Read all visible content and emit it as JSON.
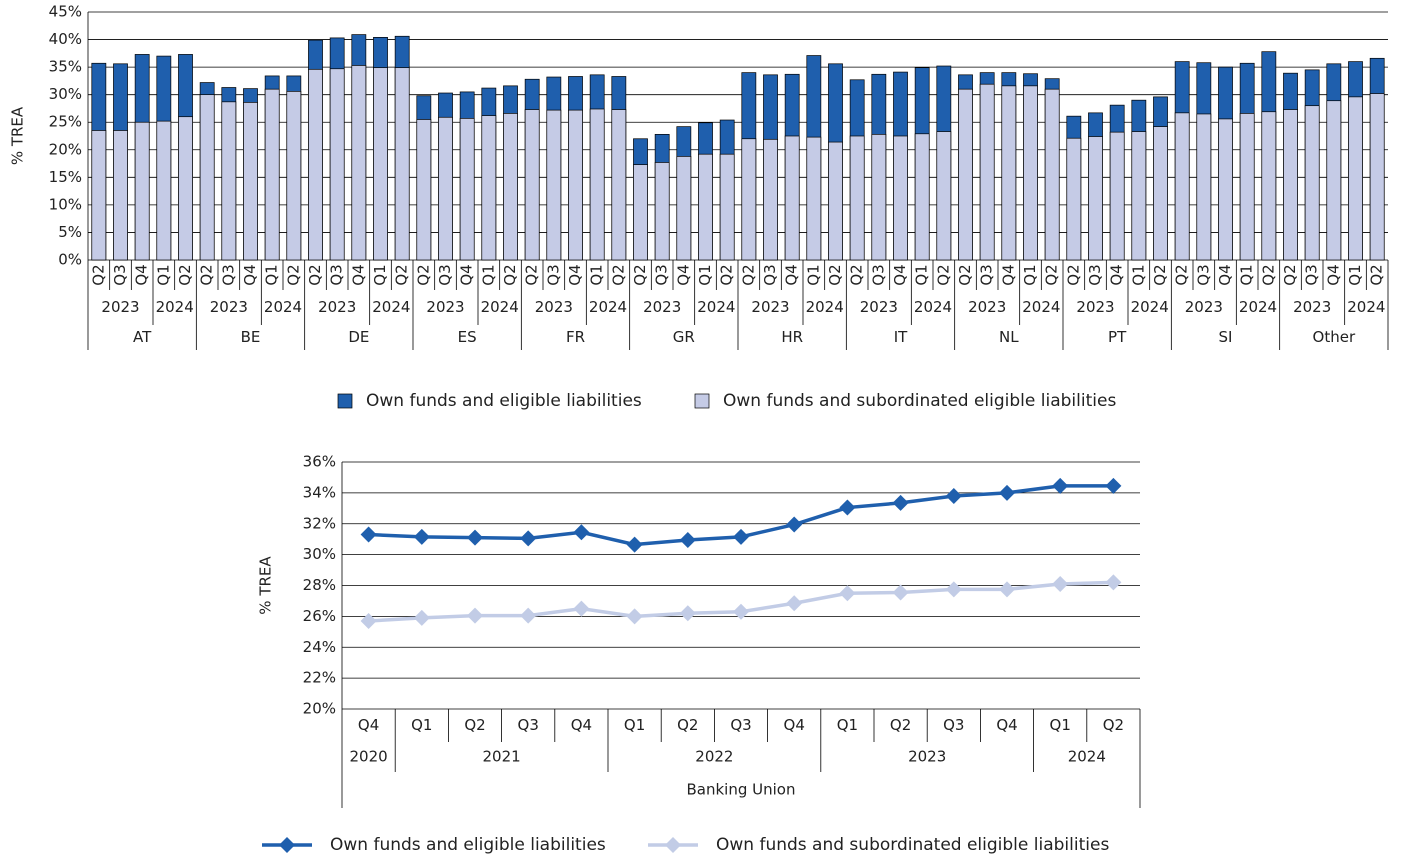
{
  "chart_data": [
    {
      "type": "bar",
      "overlap": true,
      "ylabel": "% TREA",
      "categories": [
        [
          "Q2",
          "2023",
          "AT"
        ],
        [
          "Q3",
          "2023",
          "AT"
        ],
        [
          "Q4",
          "2023",
          "AT"
        ],
        [
          "Q1",
          "2024",
          "AT"
        ],
        [
          "Q2",
          "2024",
          "AT"
        ],
        [
          "Q2",
          "2023",
          "BE"
        ],
        [
          "Q3",
          "2023",
          "BE"
        ],
        [
          "Q4",
          "2023",
          "BE"
        ],
        [
          "Q1",
          "2024",
          "BE"
        ],
        [
          "Q2",
          "2024",
          "BE"
        ],
        [
          "Q2",
          "2023",
          "DE"
        ],
        [
          "Q3",
          "2023",
          "DE"
        ],
        [
          "Q4",
          "2023",
          "DE"
        ],
        [
          "Q1",
          "2024",
          "DE"
        ],
        [
          "Q2",
          "2024",
          "DE"
        ],
        [
          "Q2",
          "2023",
          "ES"
        ],
        [
          "Q3",
          "2023",
          "ES"
        ],
        [
          "Q4",
          "2023",
          "ES"
        ],
        [
          "Q1",
          "2024",
          "ES"
        ],
        [
          "Q2",
          "2024",
          "ES"
        ],
        [
          "Q2",
          "2023",
          "FR"
        ],
        [
          "Q3",
          "2023",
          "FR"
        ],
        [
          "Q4",
          "2023",
          "FR"
        ],
        [
          "Q1",
          "2024",
          "FR"
        ],
        [
          "Q2",
          "2024",
          "FR"
        ],
        [
          "Q2",
          "2023",
          "GR"
        ],
        [
          "Q3",
          "2023",
          "GR"
        ],
        [
          "Q4",
          "2023",
          "GR"
        ],
        [
          "Q1",
          "2024",
          "GR"
        ],
        [
          "Q2",
          "2024",
          "GR"
        ],
        [
          "Q2",
          "2023",
          "HR"
        ],
        [
          "Q3",
          "2023",
          "HR"
        ],
        [
          "Q4",
          "2023",
          "HR"
        ],
        [
          "Q1",
          "2024",
          "HR"
        ],
        [
          "Q2",
          "2024",
          "HR"
        ],
        [
          "Q2",
          "2023",
          "IT"
        ],
        [
          "Q3",
          "2023",
          "IT"
        ],
        [
          "Q4",
          "2023",
          "IT"
        ],
        [
          "Q1",
          "2024",
          "IT"
        ],
        [
          "Q2",
          "2024",
          "IT"
        ],
        [
          "Q2",
          "2023",
          "NL"
        ],
        [
          "Q3",
          "2023",
          "NL"
        ],
        [
          "Q4",
          "2023",
          "NL"
        ],
        [
          "Q1",
          "2024",
          "NL"
        ],
        [
          "Q2",
          "2024",
          "NL"
        ],
        [
          "Q2",
          "2023",
          "PT"
        ],
        [
          "Q3",
          "2023",
          "PT"
        ],
        [
          "Q4",
          "2023",
          "PT"
        ],
        [
          "Q1",
          "2024",
          "PT"
        ],
        [
          "Q2",
          "2024",
          "PT"
        ],
        [
          "Q2",
          "2023",
          "SI"
        ],
        [
          "Q3",
          "2023",
          "SI"
        ],
        [
          "Q4",
          "2023",
          "SI"
        ],
        [
          "Q1",
          "2024",
          "SI"
        ],
        [
          "Q2",
          "2024",
          "SI"
        ],
        [
          "Q2",
          "2023",
          "Other"
        ],
        [
          "Q3",
          "2023",
          "Other"
        ],
        [
          "Q4",
          "2023",
          "Other"
        ],
        [
          "Q1",
          "2024",
          "Other"
        ],
        [
          "Q2",
          "2024",
          "Other"
        ]
      ],
      "series": [
        {
          "name": "Own funds and eligible liabilities",
          "color": "#1f5fad",
          "values": [
            35.7,
            35.6,
            37.3,
            37.0,
            37.3,
            32.2,
            31.3,
            31.1,
            33.4,
            33.4,
            39.9,
            40.3,
            40.9,
            40.4,
            40.6,
            29.8,
            30.3,
            30.5,
            31.2,
            31.6,
            32.8,
            33.2,
            33.3,
            33.6,
            33.3,
            22.0,
            22.8,
            24.2,
            24.9,
            25.4,
            34.0,
            33.6,
            33.7,
            37.1,
            35.6,
            32.7,
            33.7,
            34.1,
            34.9,
            35.2,
            33.6,
            34.0,
            34.0,
            33.8,
            32.9,
            26.1,
            26.7,
            28.1,
            29.0,
            29.6,
            36.0,
            35.8,
            35.0,
            35.7,
            37.8,
            33.9,
            34.5,
            35.6,
            36.0,
            36.6
          ]
        },
        {
          "name": "Own funds and subordinated eligible liabilities",
          "color": "#c5cbe6",
          "values": [
            23.5,
            23.5,
            25.0,
            25.2,
            26.0,
            30.0,
            28.7,
            28.6,
            31.0,
            30.6,
            34.6,
            34.7,
            35.3,
            34.9,
            34.9,
            25.5,
            25.9,
            25.7,
            26.2,
            26.6,
            27.3,
            27.2,
            27.2,
            27.4,
            27.3,
            17.3,
            17.7,
            18.8,
            19.2,
            19.2,
            22.0,
            21.9,
            22.5,
            22.3,
            21.4,
            22.5,
            22.8,
            22.5,
            22.9,
            23.3,
            31.0,
            31.9,
            31.6,
            31.6,
            31.0,
            22.1,
            22.4,
            23.2,
            23.3,
            24.2,
            26.7,
            26.5,
            25.6,
            26.6,
            26.9,
            27.3,
            28.0,
            28.9,
            29.6,
            30.2
          ]
        }
      ],
      "ylim": [
        0,
        45
      ],
      "yticks": [
        {
          "value": 0,
          "label": "0%"
        },
        {
          "value": 5,
          "label": "5%"
        },
        {
          "value": 10,
          "label": "10%"
        },
        {
          "value": 15,
          "label": "15%"
        },
        {
          "value": 20,
          "label": "20%"
        },
        {
          "value": 25,
          "label": "25%"
        },
        {
          "value": 30,
          "label": "30%"
        },
        {
          "value": 35,
          "label": "35%"
        },
        {
          "value": 40,
          "label": "40%"
        },
        {
          "value": 45,
          "label": "45%"
        }
      ],
      "grid": true
    },
    {
      "type": "line",
      "ylabel": "% TREA",
      "xlabel": "Banking Union",
      "categories": [
        [
          "Q4",
          "2020"
        ],
        [
          "Q1",
          "2021"
        ],
        [
          "Q2",
          "2021"
        ],
        [
          "Q3",
          "2021"
        ],
        [
          "Q4",
          "2021"
        ],
        [
          "Q1",
          "2022"
        ],
        [
          "Q2",
          "2022"
        ],
        [
          "Q3",
          "2022"
        ],
        [
          "Q4",
          "2022"
        ],
        [
          "Q1",
          "2023"
        ],
        [
          "Q2",
          "2023"
        ],
        [
          "Q3",
          "2023"
        ],
        [
          "Q4",
          "2023"
        ],
        [
          "Q1",
          "2024"
        ],
        [
          "Q2",
          "2024"
        ]
      ],
      "series": [
        {
          "name": "Own funds and eligible liabilities",
          "color": "#1f5fad",
          "values": [
            31.3,
            31.15,
            31.1,
            31.05,
            31.45,
            30.65,
            30.95,
            31.15,
            31.95,
            33.05,
            33.35,
            33.8,
            34.0,
            34.45,
            34.45
          ]
        },
        {
          "name": "Own funds and subordinated eligible liabilities",
          "color": "#c2cce6",
          "values": [
            25.7,
            25.9,
            26.05,
            26.05,
            26.5,
            26.0,
            26.2,
            26.3,
            26.85,
            27.5,
            27.55,
            27.75,
            27.75,
            28.1,
            28.2
          ]
        }
      ],
      "ylim": [
        20,
        36
      ],
      "yticks": [
        {
          "value": 20,
          "label": "20%"
        },
        {
          "value": 22,
          "label": "22%"
        },
        {
          "value": 24,
          "label": "24%"
        },
        {
          "value": 26,
          "label": "26%"
        },
        {
          "value": 28,
          "label": "28%"
        },
        {
          "value": 30,
          "label": "30%"
        },
        {
          "value": 32,
          "label": "32%"
        },
        {
          "value": 34,
          "label": "34%"
        },
        {
          "value": 36,
          "label": "36%"
        }
      ],
      "grid": true
    }
  ]
}
